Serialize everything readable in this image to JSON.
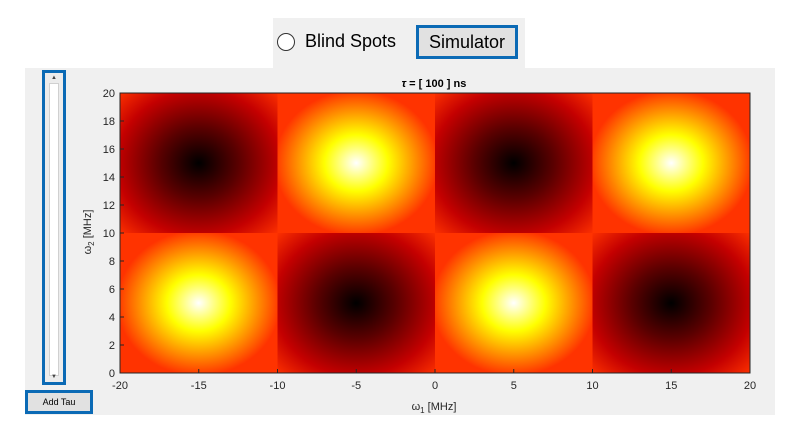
{
  "toolbar": {
    "radio_label": "Blind Spots",
    "simulator_label": "Simulator"
  },
  "controls": {
    "add_tau_label": "Add Tau",
    "tau_slider_level": 0.0
  },
  "chart_data": {
    "type": "heatmap",
    "title": "τ = [ 100 ] ns",
    "title_symbol": "τ",
    "title_rest": " = [ 100 ] ns",
    "xlabel_symbol": "ω",
    "xlabel_sub": "1",
    "xlabel_unit": " [MHz]",
    "ylabel_symbol": "ω",
    "ylabel_sub": "2",
    "ylabel_unit": " [MHz]",
    "xlim": [
      -20,
      20
    ],
    "ylim": [
      0,
      20
    ],
    "xticks": [
      "-20",
      "-15",
      "-10",
      "-5",
      "0",
      "5",
      "10",
      "15",
      "20"
    ],
    "yticks": [
      "0",
      "2",
      "4",
      "6",
      "8",
      "10",
      "12",
      "14",
      "16",
      "18",
      "20"
    ],
    "colormap": "hot",
    "grid": false,
    "cells": [
      {
        "x": -15,
        "y": 15,
        "level": "min"
      },
      {
        "x": -5,
        "y": 15,
        "level": "max"
      },
      {
        "x": 5,
        "y": 15,
        "level": "min"
      },
      {
        "x": 15,
        "y": 15,
        "level": "max"
      },
      {
        "x": -15,
        "y": 5,
        "level": "max"
      },
      {
        "x": -5,
        "y": 5,
        "level": "min"
      },
      {
        "x": 5,
        "y": 5,
        "level": "max"
      },
      {
        "x": 15,
        "y": 5,
        "level": "min"
      }
    ]
  },
  "colors": {
    "accent": "#0b6ab5",
    "heat_bright": "#ffffff",
    "heat_yellow": "#ffff00",
    "heat_orange": "#ff3300",
    "heat_red": "#c40000",
    "heat_dark": "#000000"
  }
}
